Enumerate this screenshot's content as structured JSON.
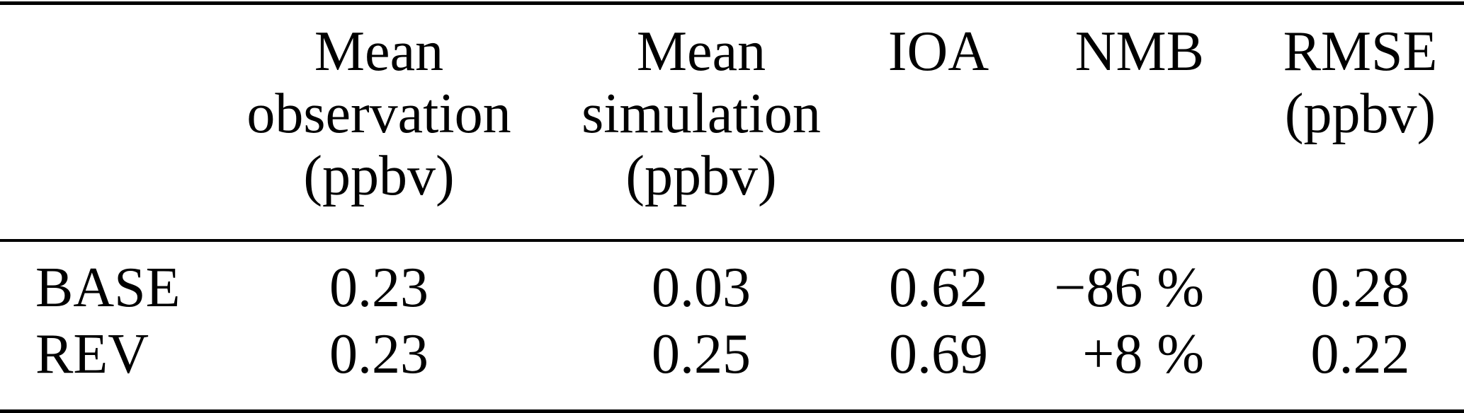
{
  "table": {
    "unit": "ppbv",
    "columns": [
      {
        "key": "row_label",
        "label": ""
      },
      {
        "key": "mean_observation",
        "label": "Mean observation (ppbv)",
        "lines": [
          "Mean",
          "observation",
          "(ppbv)"
        ]
      },
      {
        "key": "mean_simulation",
        "label": "Mean simulation (ppbv)",
        "lines": [
          "Mean",
          "simulation",
          "(ppbv)"
        ]
      },
      {
        "key": "ioa",
        "label": "IOA",
        "lines": [
          "IOA"
        ]
      },
      {
        "key": "nmb",
        "label": "NMB",
        "lines": [
          "NMB"
        ]
      },
      {
        "key": "rmse",
        "label": "RMSE (ppbv)",
        "lines": [
          "RMSE",
          "(ppbv)"
        ]
      }
    ],
    "rows": [
      {
        "label": "BASE",
        "values": [
          "0.23",
          "0.03",
          "0.62",
          "−86 %",
          "0.28"
        ]
      },
      {
        "label": "REV",
        "values": [
          "0.23",
          "0.25",
          "0.69",
          "+8 %",
          "0.22"
        ]
      }
    ],
    "colors": {
      "text": "#000000",
      "background": "#ffffff",
      "rule": "#000000"
    }
  }
}
